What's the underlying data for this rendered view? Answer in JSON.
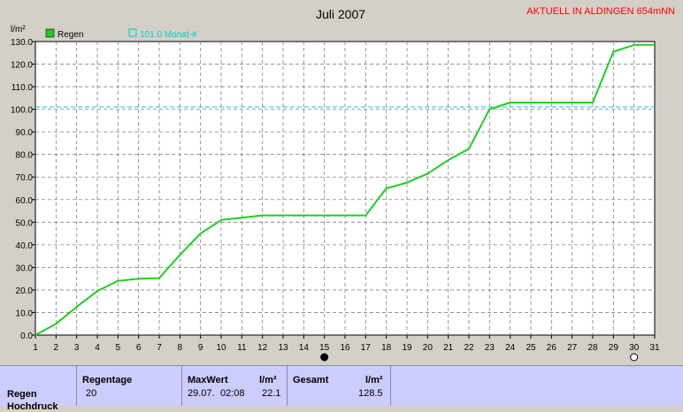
{
  "chart_data": {
    "type": "line",
    "title": "Juli 2007",
    "status_text": "AKTUELL IN ALDINGEN 654mNN",
    "ylabel": "l/m²",
    "ylim": [
      0,
      130
    ],
    "xlim": [
      1,
      31
    ],
    "y_ticks": [
      "0.0",
      "10.0",
      "20.0",
      "30.0",
      "40.0",
      "50.0",
      "60.0",
      "70.0",
      "80.0",
      "90.0",
      "100.0",
      "110.0",
      "120.0",
      "130.0"
    ],
    "x_ticks": [
      "1",
      "2",
      "3",
      "4",
      "5",
      "6",
      "7",
      "8",
      "9",
      "10",
      "11",
      "12",
      "13",
      "14",
      "15",
      "16",
      "17",
      "18",
      "19",
      "20",
      "21",
      "22",
      "23",
      "24",
      "25",
      "26",
      "27",
      "28",
      "29",
      "30",
      "31"
    ],
    "grid": true,
    "legend": [
      {
        "name": "Regen",
        "color": "#22cc22",
        "style": "filled-square"
      },
      {
        "name": "101.0 Monat-#",
        "color": "#00cccc",
        "style": "open-square"
      }
    ],
    "series": [
      {
        "name": "Regen",
        "color": "#22cc22",
        "x": [
          1,
          2,
          3,
          4,
          5,
          6,
          7,
          8,
          9,
          10,
          11,
          12,
          13,
          14,
          15,
          16,
          17,
          18,
          19,
          20,
          21,
          22,
          23,
          24,
          25,
          26,
          27,
          28,
          29,
          30,
          31
        ],
        "y": [
          0,
          5,
          12.5,
          19.5,
          24,
          25,
          25.2,
          35.5,
          45,
          51,
          52,
          53,
          53,
          53,
          53,
          53,
          53,
          65,
          67.5,
          71.5,
          77.5,
          82.5,
          100,
          103,
          103,
          103,
          103,
          103,
          125.5,
          128.5,
          128.5
        ]
      }
    ],
    "reference_lines": [
      {
        "name": "101.0 Monat-#",
        "y": 101,
        "color": "#00cccc",
        "style": "dashed"
      }
    ],
    "markers": [
      {
        "name": "moon-new-icon",
        "x": 15,
        "style": "filled-circle"
      },
      {
        "name": "moon-full-icon",
        "x": 30,
        "style": "open-circle"
      }
    ]
  },
  "stats": {
    "row_label": "Regen",
    "row_label_2": "Hochdruck",
    "regentage": {
      "header": "Regentage",
      "value": "20"
    },
    "maxwert": {
      "header": "MaxWert",
      "unit": "l/m²",
      "date": "29.07.",
      "time": "02:08",
      "value": "22.1"
    },
    "gesamt": {
      "header": "Gesamt",
      "unit": "l/m²",
      "value": "128.5"
    }
  }
}
